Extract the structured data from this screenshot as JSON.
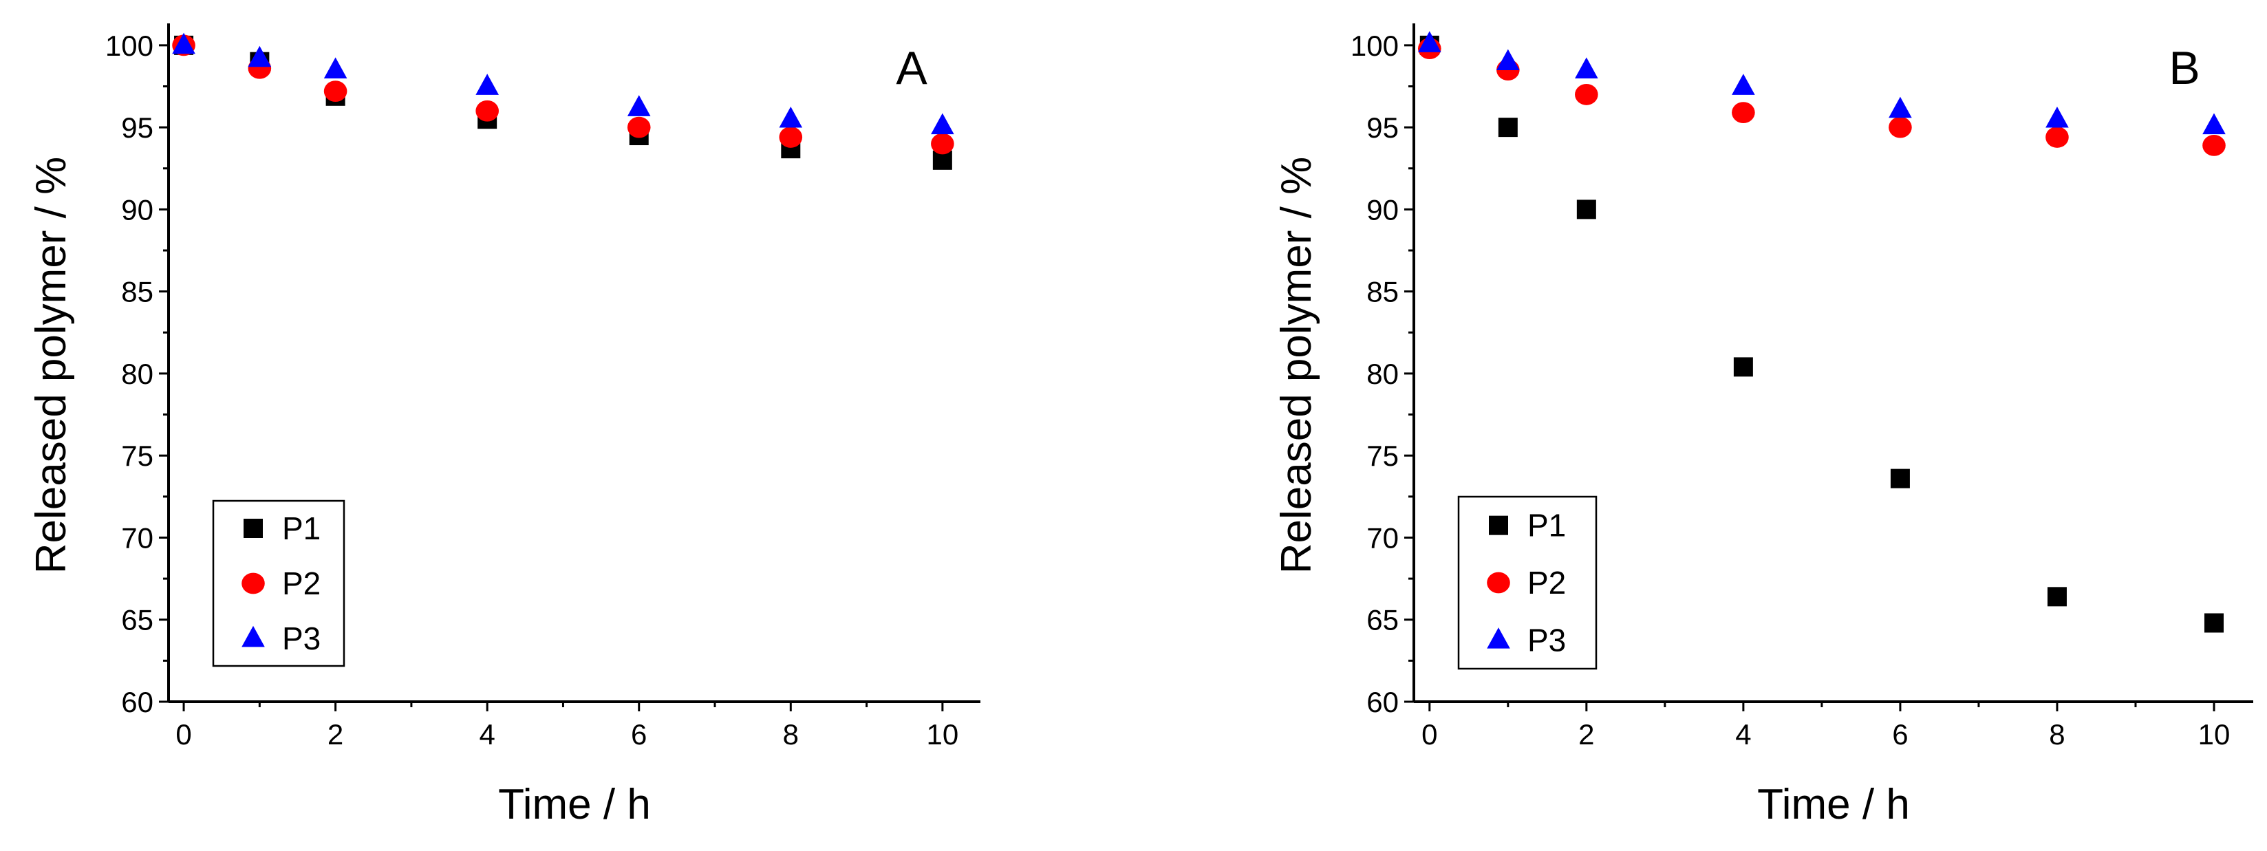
{
  "chart_data": [
    {
      "type": "scatter",
      "panel_label": "A",
      "xlabel": "Time / h",
      "ylabel": "Released polymer / %",
      "xlim": [
        -0.2,
        10.5
      ],
      "ylim": [
        60,
        101
      ],
      "xticks": [
        0,
        2,
        4,
        6,
        8,
        10
      ],
      "yticks": [
        60,
        65,
        70,
        75,
        80,
        85,
        90,
        95,
        100
      ],
      "x": [
        0,
        1,
        2,
        4,
        6,
        8,
        10
      ],
      "legend_position": "bottom-left",
      "series": [
        {
          "name": "P1",
          "marker": "square",
          "color": "#000000",
          "values": [
            100,
            99.0,
            96.9,
            95.5,
            94.5,
            93.7,
            93.0
          ]
        },
        {
          "name": "P2",
          "marker": "circle",
          "color": "#ff0000",
          "values": [
            100,
            98.6,
            97.2,
            96.0,
            95.0,
            94.4,
            94.0
          ]
        },
        {
          "name": "P3",
          "marker": "triangle",
          "color": "#0000ff",
          "values": [
            100,
            99.2,
            98.5,
            97.5,
            96.2,
            95.5,
            95.1
          ]
        }
      ]
    },
    {
      "type": "scatter",
      "panel_label": "B",
      "xlabel": "Time / h",
      "ylabel": "Released polymer / %",
      "xlim": [
        -0.2,
        10.5
      ],
      "ylim": [
        60,
        101
      ],
      "xticks": [
        0,
        2,
        4,
        6,
        8,
        10
      ],
      "yticks": [
        60,
        65,
        70,
        75,
        80,
        85,
        90,
        95,
        100
      ],
      "x": [
        0,
        1,
        2,
        4,
        6,
        8,
        10
      ],
      "legend_position": "bottom-left",
      "series": [
        {
          "name": "P1",
          "marker": "square",
          "color": "#000000",
          "values": [
            100,
            95.0,
            90.0,
            80.4,
            73.6,
            66.4,
            64.8
          ]
        },
        {
          "name": "P2",
          "marker": "circle",
          "color": "#ff0000",
          "values": [
            99.8,
            98.5,
            97.0,
            95.9,
            95.0,
            94.4,
            93.9
          ]
        },
        {
          "name": "P3",
          "marker": "triangle",
          "color": "#0000ff",
          "values": [
            100.1,
            99.0,
            98.5,
            97.5,
            96.1,
            95.5,
            95.1
          ]
        }
      ]
    }
  ]
}
